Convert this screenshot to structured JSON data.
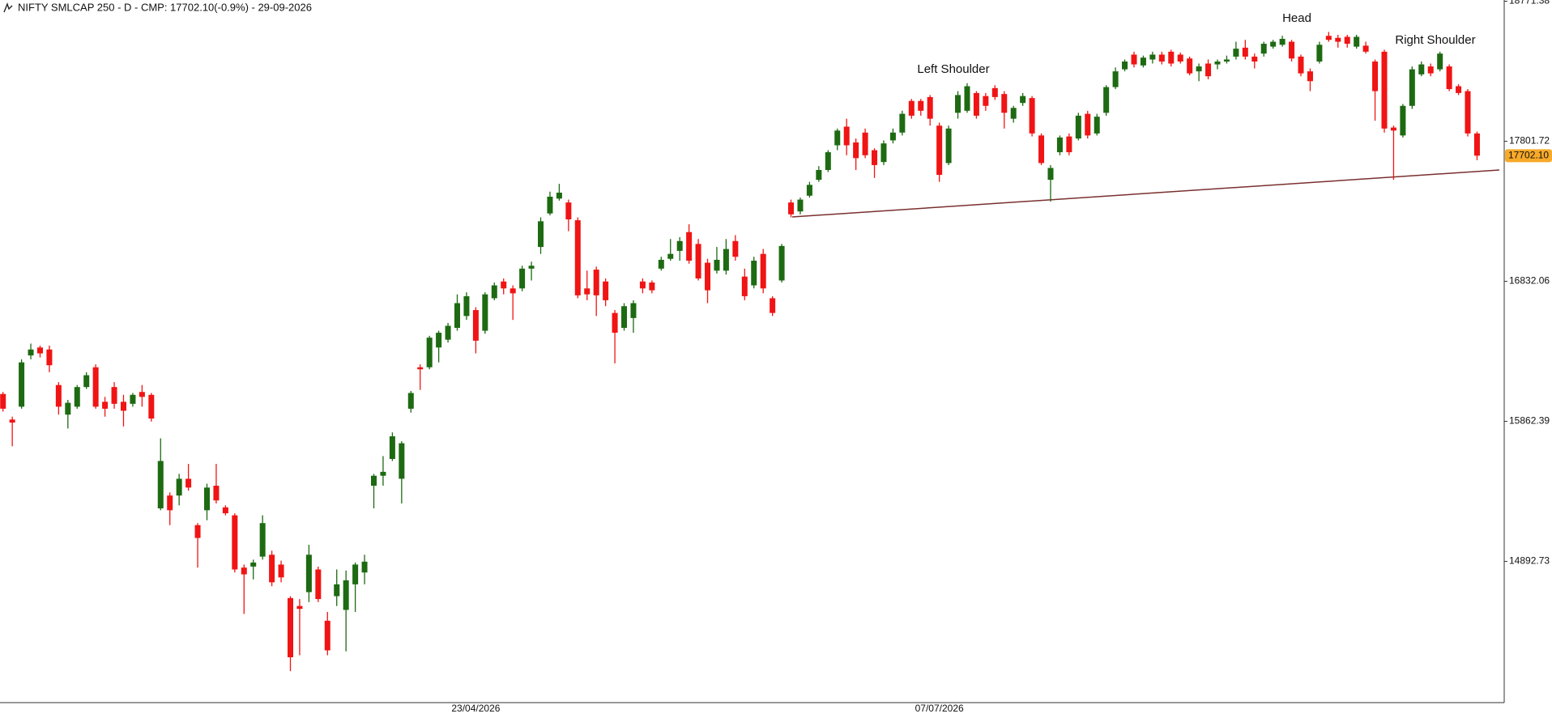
{
  "chart_data": {
    "type": "candlestick",
    "title": "NIFTY SMLCAP 250 - D - CMP: 17702.10(-0.9%) - 29-09-2026",
    "up_color": "#1d6a12",
    "down_color": "#f01414",
    "ylim": [
      13915,
      18780
    ],
    "yticks": [
      {
        "value": 18771.38,
        "label": "18771.38"
      },
      {
        "value": 17801.72,
        "label": "17801.72"
      },
      {
        "value": 16832.06,
        "label": "16832.06"
      },
      {
        "value": 15862.39,
        "label": "15862.39"
      },
      {
        "value": 14892.73,
        "label": "14892.73"
      }
    ],
    "last_price": {
      "value": 17702.1,
      "label": "17702.10"
    },
    "annotations": [
      "Left Shoulder",
      "Head",
      "Right Shoulder"
    ],
    "categories": [
      null,
      null,
      null,
      null,
      null,
      null,
      null,
      null,
      null,
      null,
      null,
      null,
      null,
      null,
      null,
      null,
      null,
      null,
      null,
      null,
      null,
      null,
      null,
      null,
      null,
      null,
      null,
      null,
      null,
      null,
      null,
      null,
      null,
      null,
      null,
      null,
      null,
      null,
      null,
      null,
      null,
      null,
      null,
      null,
      null,
      null,
      null,
      null,
      null,
      null,
      null,
      "23/04/2026",
      null,
      null,
      null,
      null,
      null,
      null,
      null,
      null,
      null,
      null,
      null,
      null,
      null,
      null,
      null,
      null,
      null,
      null,
      null,
      null,
      null,
      null,
      null,
      null,
      null,
      null,
      null,
      null,
      null,
      null,
      null,
      null,
      null,
      null,
      null,
      null,
      null,
      null,
      null,
      null,
      null,
      null,
      null,
      null,
      null,
      null,
      null,
      null,
      null,
      "07/07/2026",
      null,
      null,
      null,
      null,
      null,
      null,
      null,
      null,
      null,
      null,
      null,
      null,
      null,
      null,
      null,
      null,
      null,
      null,
      null,
      null,
      null,
      null,
      null,
      null,
      null,
      null,
      null,
      null,
      null,
      null,
      null,
      null,
      null,
      null,
      null,
      null,
      null,
      null,
      null,
      null,
      null,
      null,
      null,
      null,
      null,
      null,
      null,
      null,
      null,
      null,
      null,
      null,
      null,
      null,
      null,
      null,
      null,
      null,
      null
    ],
    "candles": [
      [
        16052,
        16066,
        15930,
        15950
      ],
      [
        15875,
        15895,
        15690,
        15854
      ],
      [
        15964,
        16292,
        15950,
        16271
      ],
      [
        16319,
        16401,
        16292,
        16360
      ],
      [
        16374,
        16387,
        16305,
        16333
      ],
      [
        16360,
        16387,
        16203,
        16251
      ],
      [
        16114,
        16134,
        15909,
        15964
      ],
      [
        15909,
        16011,
        15813,
        15991
      ],
      [
        15964,
        16114,
        15950,
        16100
      ],
      [
        16100,
        16203,
        16087,
        16182
      ],
      [
        16237,
        16257,
        15950,
        15964
      ],
      [
        15998,
        16032,
        15895,
        15950
      ],
      [
        16100,
        16134,
        15950,
        15984
      ],
      [
        15998,
        16046,
        15827,
        15936
      ],
      [
        15984,
        16059,
        15964,
        16046
      ],
      [
        16066,
        16114,
        15964,
        16032
      ],
      [
        16046,
        16059,
        15861,
        15882
      ],
      [
        15260,
        15745,
        15247,
        15588
      ],
      [
        15349,
        15370,
        15144,
        15247
      ],
      [
        15349,
        15499,
        15281,
        15465
      ],
      [
        15465,
        15568,
        15383,
        15404
      ],
      [
        15144,
        15158,
        14850,
        15055
      ],
      [
        15247,
        15431,
        15178,
        15404
      ],
      [
        15417,
        15568,
        15294,
        15315
      ],
      [
        15267,
        15281,
        15212,
        15226
      ],
      [
        15212,
        15226,
        14816,
        14837
      ],
      [
        14850,
        14871,
        14529,
        14803
      ],
      [
        14857,
        14905,
        14768,
        14885
      ],
      [
        14926,
        15212,
        14905,
        15158
      ],
      [
        14939,
        14967,
        14721,
        14748
      ],
      [
        14871,
        14898,
        14748,
        14782
      ],
      [
        14639,
        14652,
        14133,
        14229
      ],
      [
        14584,
        14632,
        14243,
        14564
      ],
      [
        14680,
        15008,
        14611,
        14939
      ],
      [
        14837,
        14857,
        14611,
        14632
      ],
      [
        14482,
        14543,
        14243,
        14277
      ],
      [
        14652,
        14837,
        14584,
        14734
      ],
      [
        14557,
        14830,
        14270,
        14762
      ],
      [
        14734,
        14885,
        14543,
        14871
      ],
      [
        14816,
        14939,
        14734,
        14891
      ],
      [
        15417,
        15499,
        15260,
        15486
      ],
      [
        15486,
        15622,
        15417,
        15513
      ],
      [
        15602,
        15786,
        15588,
        15759
      ],
      [
        15465,
        15725,
        15294,
        15711
      ],
      [
        15950,
        16073,
        15923,
        16059
      ],
      [
        16237,
        16257,
        16080,
        16223
      ],
      [
        16237,
        16455,
        16223,
        16442
      ],
      [
        16374,
        16490,
        16271,
        16476
      ],
      [
        16428,
        16544,
        16408,
        16524
      ],
      [
        16510,
        16742,
        16490,
        16681
      ],
      [
        16592,
        16756,
        16565,
        16729
      ],
      [
        16633,
        16653,
        16333,
        16421
      ],
      [
        16490,
        16756,
        16469,
        16742
      ],
      [
        16715,
        16824,
        16701,
        16804
      ],
      [
        16831,
        16852,
        16742,
        16783
      ],
      [
        16783,
        16804,
        16565,
        16749
      ],
      [
        16783,
        16940,
        16763,
        16920
      ],
      [
        16920,
        16968,
        16838,
        16940
      ],
      [
        17070,
        17275,
        17022,
        17248
      ],
      [
        17302,
        17453,
        17289,
        17418
      ],
      [
        17405,
        17507,
        17391,
        17446
      ],
      [
        17378,
        17398,
        17179,
        17261
      ],
      [
        17255,
        17275,
        16715,
        16735
      ],
      [
        16783,
        16906,
        16701,
        16742
      ],
      [
        16913,
        16934,
        16592,
        16735
      ],
      [
        16831,
        16852,
        16660,
        16701
      ],
      [
        16613,
        16633,
        16264,
        16476
      ],
      [
        16510,
        16681,
        16490,
        16660
      ],
      [
        16578,
        16701,
        16476,
        16681
      ],
      [
        16831,
        16852,
        16749,
        16783
      ],
      [
        16824,
        16838,
        16749,
        16770
      ],
      [
        16920,
        17002,
        16906,
        16981
      ],
      [
        16988,
        17125,
        16975,
        17022
      ],
      [
        17043,
        17138,
        16975,
        17111
      ],
      [
        17173,
        17227,
        16954,
        16975
      ],
      [
        17091,
        17125,
        16838,
        16852
      ],
      [
        16961,
        16988,
        16681,
        16770
      ],
      [
        16906,
        17070,
        16886,
        16981
      ],
      [
        16906,
        17125,
        16879,
        17056
      ],
      [
        17111,
        17152,
        16975,
        17002
      ],
      [
        16865,
        16920,
        16701,
        16729
      ],
      [
        16804,
        17002,
        16783,
        16975
      ],
      [
        17022,
        17056,
        16749,
        16783
      ],
      [
        16715,
        16729,
        16592,
        16613
      ],
      [
        16838,
        17091,
        16824,
        17077
      ],
      [
        17378,
        17398,
        17275,
        17296
      ],
      [
        17316,
        17412,
        17296,
        17398
      ],
      [
        17425,
        17521,
        17412,
        17500
      ],
      [
        17535,
        17630,
        17521,
        17603
      ],
      [
        17603,
        17740,
        17589,
        17726
      ],
      [
        17774,
        17890,
        17740,
        17876
      ],
      [
        17903,
        17958,
        17705,
        17774
      ],
      [
        17794,
        17821,
        17603,
        17685
      ],
      [
        17862,
        17890,
        17685,
        17705
      ],
      [
        17740,
        17753,
        17548,
        17637
      ],
      [
        17658,
        17808,
        17637,
        17787
      ],
      [
        17808,
        17890,
        17787,
        17862
      ],
      [
        17862,
        18013,
        17842,
        17992
      ],
      [
        18081,
        18095,
        17958,
        17979
      ],
      [
        18081,
        18095,
        17979,
        18013
      ],
      [
        18108,
        18122,
        17910,
        17958
      ],
      [
        17910,
        17931,
        17521,
        17569
      ],
      [
        17651,
        17910,
        17637,
        17890
      ],
      [
        17999,
        18149,
        17958,
        18122
      ],
      [
        18013,
        18204,
        17999,
        18183
      ],
      [
        18136,
        18149,
        17958,
        17979
      ],
      [
        18115,
        18136,
        18013,
        18047
      ],
      [
        18170,
        18190,
        18088,
        18108
      ],
      [
        18129,
        18149,
        17890,
        17999
      ],
      [
        17958,
        18047,
        17931,
        18033
      ],
      [
        18067,
        18136,
        18047,
        18115
      ],
      [
        18101,
        18115,
        17835,
        17856
      ],
      [
        17842,
        17856,
        17637,
        17651
      ],
      [
        17535,
        17637,
        17384,
        17617
      ],
      [
        17726,
        17842,
        17705,
        17828
      ],
      [
        17835,
        17856,
        17705,
        17726
      ],
      [
        17821,
        17999,
        17808,
        17979
      ],
      [
        17992,
        18013,
        17821,
        17842
      ],
      [
        17856,
        17992,
        17842,
        17972
      ],
      [
        17999,
        18190,
        17979,
        18177
      ],
      [
        18177,
        18313,
        18163,
        18286
      ],
      [
        18300,
        18368,
        18286,
        18354
      ],
      [
        18402,
        18422,
        18313,
        18334
      ],
      [
        18327,
        18395,
        18313,
        18381
      ],
      [
        18368,
        18422,
        18340,
        18402
      ],
      [
        18402,
        18422,
        18334,
        18354
      ],
      [
        18422,
        18436,
        18320,
        18340
      ],
      [
        18402,
        18416,
        18340,
        18354
      ],
      [
        18375,
        18388,
        18259,
        18272
      ],
      [
        18286,
        18340,
        18218,
        18320
      ],
      [
        18340,
        18368,
        18231,
        18252
      ],
      [
        18334,
        18368,
        18300,
        18354
      ],
      [
        18354,
        18395,
        18340,
        18368
      ],
      [
        18388,
        18491,
        18368,
        18443
      ],
      [
        18450,
        18504,
        18368,
        18388
      ],
      [
        18388,
        18409,
        18306,
        18354
      ],
      [
        18409,
        18491,
        18388,
        18477
      ],
      [
        18457,
        18504,
        18443,
        18491
      ],
      [
        18470,
        18532,
        18457,
        18511
      ],
      [
        18491,
        18504,
        18354,
        18375
      ],
      [
        18388,
        18402,
        18252,
        18272
      ],
      [
        18286,
        18306,
        18149,
        18218
      ],
      [
        18354,
        18491,
        18340,
        18470
      ],
      [
        18532,
        18559,
        18491,
        18504
      ],
      [
        18518,
        18539,
        18450,
        18491
      ],
      [
        18525,
        18539,
        18450,
        18477
      ],
      [
        18457,
        18539,
        18443,
        18525
      ],
      [
        18464,
        18491,
        18409,
        18422
      ],
      [
        18354,
        18368,
        17944,
        18149
      ],
      [
        18422,
        18436,
        17862,
        17890
      ],
      [
        17897,
        17910,
        17535,
        17876
      ],
      [
        17842,
        18060,
        17828,
        18047
      ],
      [
        18047,
        18320,
        18026,
        18300
      ],
      [
        18265,
        18354,
        18252,
        18334
      ],
      [
        18320,
        18340,
        18252,
        18272
      ],
      [
        18300,
        18422,
        18286,
        18409
      ],
      [
        18320,
        18334,
        18149,
        18163
      ],
      [
        18183,
        18197,
        18122,
        18136
      ],
      [
        18149,
        18163,
        17835,
        17856
      ],
      [
        17856,
        17869,
        17671,
        17702.1
      ]
    ]
  }
}
